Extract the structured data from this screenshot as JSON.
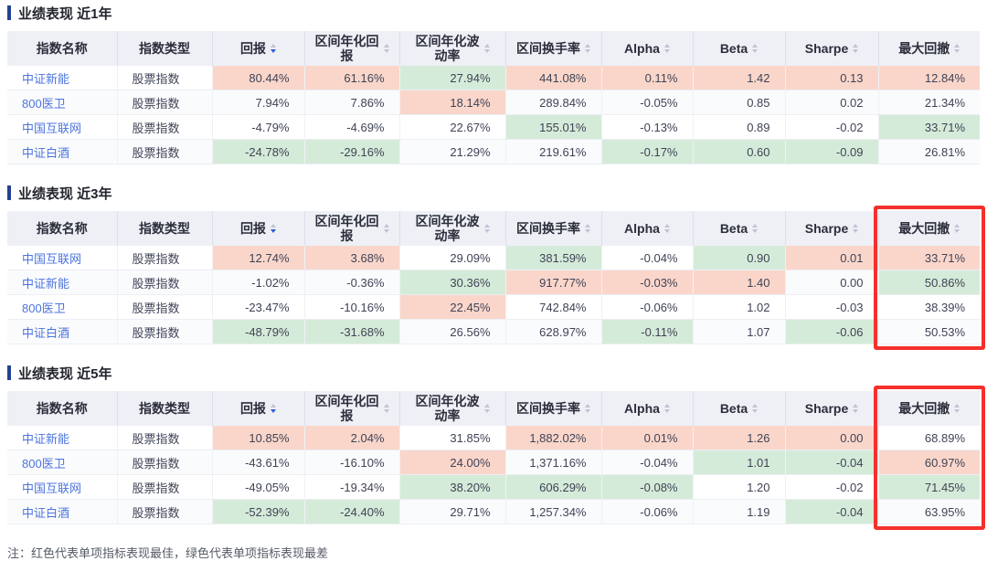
{
  "colors": {
    "best_highlight": "#fad6ca",
    "worst_highlight": "#d5ebd9",
    "accent_bar": "#25408f",
    "link": "#4d74dd",
    "highlight_box": "#f5302c",
    "header_bg": "#eef0f6"
  },
  "columns": [
    {
      "key": "index-name",
      "label": "指数名称",
      "sortable": false
    },
    {
      "key": "index-type",
      "label": "指数类型",
      "sortable": false
    },
    {
      "key": "return",
      "label": "回报",
      "sortable": true,
      "sorted": "desc"
    },
    {
      "key": "annualized-return",
      "label": "区间年化回报",
      "sortable": true,
      "wrap": true
    },
    {
      "key": "annualized-volatility",
      "label": "区间年化波动率",
      "sortable": true,
      "wrap": true
    },
    {
      "key": "turnover",
      "label": "区间换手率",
      "sortable": true
    },
    {
      "key": "alpha",
      "label": "Alpha",
      "sortable": true
    },
    {
      "key": "beta",
      "label": "Beta",
      "sortable": true
    },
    {
      "key": "sharpe",
      "label": "Sharpe",
      "sortable": true
    },
    {
      "key": "max-drawdown",
      "label": "最大回撤",
      "sortable": true
    }
  ],
  "sections": [
    {
      "title": "业绩表现 近1年",
      "highlight_max_drawdown": false,
      "rows": [
        {
          "name": "中证新能",
          "type": "股票指数",
          "metrics": [
            {
              "v": "80.44%",
              "h": "best"
            },
            {
              "v": "61.16%",
              "h": "best"
            },
            {
              "v": "27.94%",
              "h": "worst"
            },
            {
              "v": "441.08%",
              "h": "best"
            },
            {
              "v": "0.11%",
              "h": "best"
            },
            {
              "v": "1.42",
              "h": "best"
            },
            {
              "v": "0.13",
              "h": "best"
            },
            {
              "v": "12.84%",
              "h": "best"
            }
          ]
        },
        {
          "name": "800医卫",
          "type": "股票指数",
          "metrics": [
            {
              "v": "7.94%"
            },
            {
              "v": "7.86%"
            },
            {
              "v": "18.14%",
              "h": "best"
            },
            {
              "v": "289.84%"
            },
            {
              "v": "-0.05%"
            },
            {
              "v": "0.85"
            },
            {
              "v": "0.02"
            },
            {
              "v": "21.34%"
            }
          ]
        },
        {
          "name": "中国互联网",
          "type": "股票指数",
          "metrics": [
            {
              "v": "-4.79%"
            },
            {
              "v": "-4.69%"
            },
            {
              "v": "22.67%"
            },
            {
              "v": "155.01%",
              "h": "worst"
            },
            {
              "v": "-0.13%"
            },
            {
              "v": "0.89"
            },
            {
              "v": "-0.02"
            },
            {
              "v": "33.71%",
              "h": "worst"
            }
          ]
        },
        {
          "name": "中证白酒",
          "type": "股票指数",
          "metrics": [
            {
              "v": "-24.78%",
              "h": "worst"
            },
            {
              "v": "-29.16%",
              "h": "worst"
            },
            {
              "v": "21.29%"
            },
            {
              "v": "219.61%"
            },
            {
              "v": "-0.17%",
              "h": "worst"
            },
            {
              "v": "0.60",
              "h": "worst"
            },
            {
              "v": "-0.09",
              "h": "worst"
            },
            {
              "v": "26.81%"
            }
          ]
        }
      ]
    },
    {
      "title": "业绩表现 近3年",
      "highlight_max_drawdown": true,
      "rows": [
        {
          "name": "中国互联网",
          "type": "股票指数",
          "metrics": [
            {
              "v": "12.74%",
              "h": "best"
            },
            {
              "v": "3.68%",
              "h": "best"
            },
            {
              "v": "29.09%"
            },
            {
              "v": "381.59%",
              "h": "worst"
            },
            {
              "v": "-0.04%"
            },
            {
              "v": "0.90",
              "h": "worst"
            },
            {
              "v": "0.01",
              "h": "best"
            },
            {
              "v": "33.71%",
              "h": "best"
            }
          ]
        },
        {
          "name": "中证新能",
          "type": "股票指数",
          "metrics": [
            {
              "v": "-1.02%"
            },
            {
              "v": "-0.36%"
            },
            {
              "v": "30.36%",
              "h": "worst"
            },
            {
              "v": "917.77%",
              "h": "best"
            },
            {
              "v": "-0.03%",
              "h": "best"
            },
            {
              "v": "1.40",
              "h": "best"
            },
            {
              "v": "0.00"
            },
            {
              "v": "50.86%",
              "h": "worst"
            }
          ]
        },
        {
          "name": "800医卫",
          "type": "股票指数",
          "metrics": [
            {
              "v": "-23.47%"
            },
            {
              "v": "-10.16%"
            },
            {
              "v": "22.45%",
              "h": "best"
            },
            {
              "v": "742.84%"
            },
            {
              "v": "-0.06%"
            },
            {
              "v": "1.02"
            },
            {
              "v": "-0.03"
            },
            {
              "v": "38.39%"
            }
          ]
        },
        {
          "name": "中证白酒",
          "type": "股票指数",
          "metrics": [
            {
              "v": "-48.79%",
              "h": "worst"
            },
            {
              "v": "-31.68%",
              "h": "worst"
            },
            {
              "v": "26.56%"
            },
            {
              "v": "628.97%"
            },
            {
              "v": "-0.11%",
              "h": "worst"
            },
            {
              "v": "1.07"
            },
            {
              "v": "-0.06",
              "h": "worst"
            },
            {
              "v": "50.53%"
            }
          ]
        }
      ]
    },
    {
      "title": "业绩表现 近5年",
      "highlight_max_drawdown": true,
      "rows": [
        {
          "name": "中证新能",
          "type": "股票指数",
          "metrics": [
            {
              "v": "10.85%",
              "h": "best"
            },
            {
              "v": "2.04%",
              "h": "best"
            },
            {
              "v": "31.85%"
            },
            {
              "v": "1,882.02%",
              "h": "best"
            },
            {
              "v": "0.01%",
              "h": "best"
            },
            {
              "v": "1.26",
              "h": "best"
            },
            {
              "v": "0.00",
              "h": "best"
            },
            {
              "v": "68.89%"
            }
          ]
        },
        {
          "name": "800医卫",
          "type": "股票指数",
          "metrics": [
            {
              "v": "-43.61%"
            },
            {
              "v": "-16.10%"
            },
            {
              "v": "24.00%",
              "h": "best"
            },
            {
              "v": "1,371.16%"
            },
            {
              "v": "-0.04%"
            },
            {
              "v": "1.01",
              "h": "worst"
            },
            {
              "v": "-0.04",
              "h": "worst"
            },
            {
              "v": "60.97%",
              "h": "best"
            }
          ]
        },
        {
          "name": "中国互联网",
          "type": "股票指数",
          "metrics": [
            {
              "v": "-49.05%"
            },
            {
              "v": "-19.34%"
            },
            {
              "v": "38.20%",
              "h": "worst"
            },
            {
              "v": "606.29%",
              "h": "worst"
            },
            {
              "v": "-0.08%",
              "h": "worst"
            },
            {
              "v": "1.20"
            },
            {
              "v": "-0.02"
            },
            {
              "v": "71.45%",
              "h": "worst"
            }
          ]
        },
        {
          "name": "中证白酒",
          "type": "股票指数",
          "metrics": [
            {
              "v": "-52.39%",
              "h": "worst"
            },
            {
              "v": "-24.40%",
              "h": "worst"
            },
            {
              "v": "29.71%"
            },
            {
              "v": "1,257.34%"
            },
            {
              "v": "-0.06%"
            },
            {
              "v": "1.19"
            },
            {
              "v": "-0.04",
              "h": "worst"
            },
            {
              "v": "63.95%"
            }
          ]
        }
      ]
    }
  ],
  "note": "注：红色代表单项指标表现最佳，绿色代表单项指标表现最差"
}
